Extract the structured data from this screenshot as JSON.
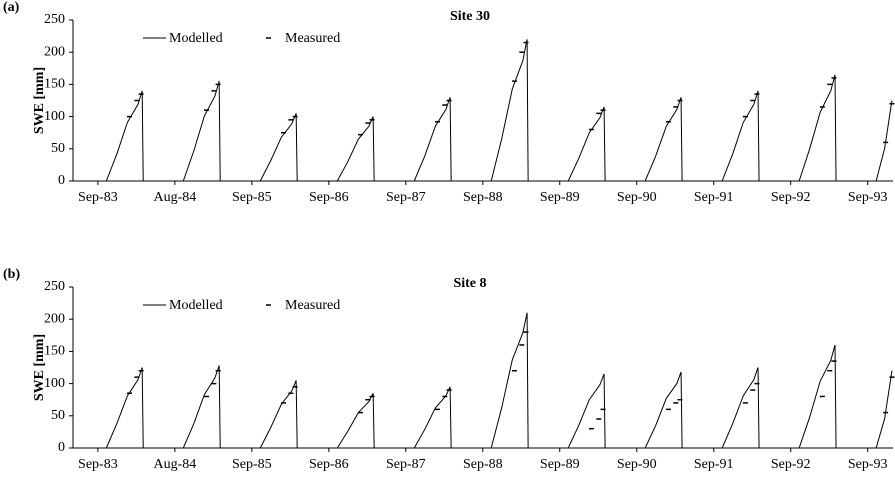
{
  "chart_data": [
    {
      "type": "line",
      "panel_label": "(a)",
      "title": "Site 30",
      "y_label": "SWE [mm]",
      "ylim": [
        0,
        250
      ],
      "yticks": [
        0,
        50,
        100,
        150,
        200,
        250
      ],
      "xlim": [
        -118,
        3770
      ],
      "xticks": [
        {
          "value": 0,
          "label": "Sep-83"
        },
        {
          "value": 365,
          "label": "Aug-84"
        },
        {
          "value": 730,
          "label": "Sep-85"
        },
        {
          "value": 1095,
          "label": "Sep-86"
        },
        {
          "value": 1460,
          "label": "Sep-87"
        },
        {
          "value": 1825,
          "label": "Sep-88"
        },
        {
          "value": 2190,
          "label": "Sep-89"
        },
        {
          "value": 2555,
          "label": "Sep-90"
        },
        {
          "value": 2920,
          "label": "Sep-91"
        },
        {
          "value": 3285,
          "label": "Sep-92"
        },
        {
          "value": 3650,
          "label": "Sep-93"
        }
      ],
      "series": [
        {
          "name": "Modelled",
          "color": "#000000",
          "style": "line",
          "x": [
            40,
            90,
            140,
            190,
            210,
            215,
            405,
            455,
            505,
            555,
            575,
            580,
            770,
            820,
            870,
            920,
            940,
            945,
            1135,
            1185,
            1235,
            1285,
            1305,
            1310,
            1500,
            1550,
            1600,
            1650,
            1670,
            1675,
            1865,
            1915,
            1965,
            2015,
            2035,
            2040,
            2230,
            2280,
            2330,
            2380,
            2400,
            2405,
            2595,
            2645,
            2695,
            2745,
            2765,
            2770,
            2960,
            3010,
            3060,
            3110,
            3130,
            3135,
            3325,
            3375,
            3425,
            3475,
            3495,
            3500,
            3690,
            3730,
            3765
          ],
          "values": [
            0,
            42,
            91,
            119,
            140,
            0,
            0,
            47,
            101,
            132,
            155,
            0,
            0,
            32,
            68,
            89,
            105,
            0,
            0,
            30,
            65,
            85,
            100,
            0,
            0,
            39,
            85,
            111,
            130,
            0,
            0,
            66,
            143,
            187,
            220,
            0,
            0,
            35,
            75,
            98,
            115,
            0,
            0,
            39,
            85,
            111,
            130,
            0,
            0,
            42,
            91,
            119,
            140,
            0,
            0,
            50,
            107,
            140,
            165,
            0,
            0,
            50,
            125
          ]
        },
        {
          "name": "Measured",
          "color": "#000000",
          "style": "dash",
          "x": [
            150,
            185,
            205,
            515,
            550,
            570,
            880,
            915,
            935,
            1245,
            1280,
            1300,
            1610,
            1645,
            1665,
            1975,
            2010,
            2030,
            2340,
            2375,
            2395,
            2705,
            2740,
            2760,
            3070,
            3105,
            3125,
            3435,
            3470,
            3490,
            3735,
            3765
          ],
          "values": [
            100,
            125,
            135,
            110,
            140,
            150,
            75,
            95,
            100,
            72,
            90,
            95,
            92,
            118,
            125,
            155,
            200,
            215,
            80,
            105,
            110,
            92,
            115,
            125,
            100,
            125,
            135,
            115,
            150,
            160,
            60,
            120
          ]
        }
      ]
    },
    {
      "type": "line",
      "panel_label": "(b)",
      "title": "Site 8",
      "y_label": "SWE [mm]",
      "ylim": [
        0,
        250
      ],
      "yticks": [
        0,
        50,
        100,
        150,
        200,
        250
      ],
      "xlim": [
        -118,
        3770
      ],
      "xticks": [
        {
          "value": 0,
          "label": "Sep-83"
        },
        {
          "value": 365,
          "label": "Aug-84"
        },
        {
          "value": 730,
          "label": "Sep-85"
        },
        {
          "value": 1095,
          "label": "Sep-86"
        },
        {
          "value": 1460,
          "label": "Sep-87"
        },
        {
          "value": 1825,
          "label": "Sep-88"
        },
        {
          "value": 2190,
          "label": "Sep-89"
        },
        {
          "value": 2555,
          "label": "Sep-90"
        },
        {
          "value": 2920,
          "label": "Sep-91"
        },
        {
          "value": 3285,
          "label": "Sep-92"
        },
        {
          "value": 3650,
          "label": "Sep-93"
        }
      ],
      "series": [
        {
          "name": "Modelled",
          "color": "#000000",
          "style": "line",
          "x": [
            40,
            90,
            140,
            190,
            210,
            215,
            405,
            455,
            505,
            555,
            575,
            580,
            770,
            820,
            870,
            920,
            940,
            945,
            1135,
            1185,
            1235,
            1285,
            1305,
            1310,
            1500,
            1550,
            1600,
            1650,
            1670,
            1675,
            1865,
            1915,
            1965,
            2015,
            2035,
            2040,
            2230,
            2280,
            2330,
            2380,
            2400,
            2405,
            2595,
            2645,
            2695,
            2745,
            2765,
            2770,
            2960,
            3010,
            3060,
            3110,
            3130,
            3135,
            3325,
            3375,
            3425,
            3475,
            3495,
            3500,
            3690,
            3730,
            3765
          ],
          "values": [
            0,
            38,
            81,
            106,
            125,
            0,
            0,
            38,
            83,
            109,
            128,
            0,
            0,
            32,
            68,
            89,
            105,
            0,
            0,
            26,
            55,
            72,
            85,
            0,
            0,
            29,
            62,
            81,
            95,
            0,
            0,
            63,
            137,
            179,
            210,
            0,
            0,
            35,
            75,
            98,
            115,
            0,
            0,
            35,
            77,
            100,
            118,
            0,
            0,
            38,
            81,
            106,
            125,
            0,
            0,
            48,
            104,
            136,
            160,
            0,
            0,
            45,
            120
          ]
        },
        {
          "name": "Measured",
          "color": "#000000",
          "style": "dash",
          "x": [
            150,
            185,
            205,
            515,
            550,
            570,
            880,
            915,
            935,
            1245,
            1280,
            1300,
            1610,
            1645,
            1665,
            1975,
            2010,
            2030,
            2340,
            2375,
            2395,
            2705,
            2740,
            2760,
            3070,
            3105,
            3125,
            3435,
            3470,
            3490,
            3735,
            3765
          ],
          "values": [
            85,
            110,
            120,
            80,
            100,
            120,
            70,
            85,
            95,
            55,
            75,
            80,
            60,
            80,
            90,
            120,
            160,
            180,
            30,
            45,
            60,
            60,
            70,
            75,
            70,
            90,
            100,
            80,
            120,
            135,
            55,
            110
          ]
        }
      ]
    }
  ]
}
